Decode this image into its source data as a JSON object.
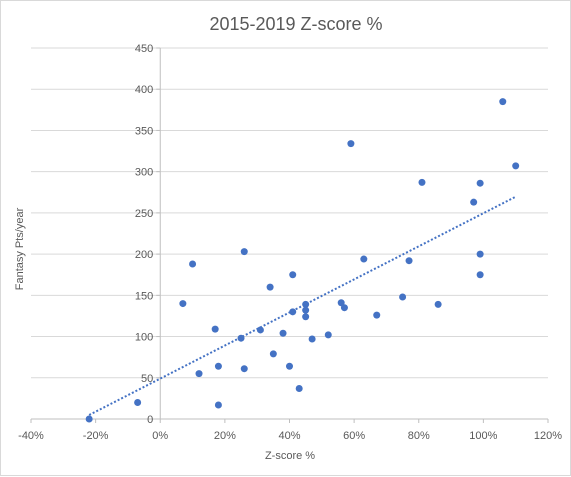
{
  "chart_data": {
    "type": "scatter",
    "title": "2015-2019 Z-score %",
    "xlabel": "Z-score %",
    "ylabel": "Fantasy Pts/year",
    "xlim": [
      -0.4,
      1.2
    ],
    "ylim": [
      0,
      450
    ],
    "x_tick_values": [
      -0.4,
      -0.2,
      0,
      0.2,
      0.4,
      0.6,
      0.8,
      1.0,
      1.2
    ],
    "x_tick_labels": [
      "-40%",
      "-20%",
      "0%",
      "20%",
      "40%",
      "60%",
      "80%",
      "100%",
      "120%"
    ],
    "y_tick_values": [
      0,
      50,
      100,
      150,
      200,
      250,
      300,
      350,
      400,
      450
    ],
    "y_tick_labels": [
      "0",
      "50",
      "100",
      "150",
      "200",
      "250",
      "300",
      "350",
      "400",
      "450"
    ],
    "grid": "horizontal",
    "marker_color": "#4472c4",
    "trendline": {
      "kind": "linear",
      "style": "dotted",
      "color": "#4472c4",
      "x_range": [
        -0.22,
        1.1
      ]
    },
    "series": [
      {
        "points": [
          {
            "x": -0.22,
            "y": 0
          },
          {
            "x": -0.07,
            "y": 20
          },
          {
            "x": 0.07,
            "y": 140
          },
          {
            "x": 0.1,
            "y": 188
          },
          {
            "x": 0.12,
            "y": 55
          },
          {
            "x": 0.17,
            "y": 109
          },
          {
            "x": 0.18,
            "y": 64
          },
          {
            "x": 0.18,
            "y": 17
          },
          {
            "x": 0.25,
            "y": 98
          },
          {
            "x": 0.26,
            "y": 203
          },
          {
            "x": 0.26,
            "y": 61
          },
          {
            "x": 0.31,
            "y": 108
          },
          {
            "x": 0.34,
            "y": 160
          },
          {
            "x": 0.35,
            "y": 79
          },
          {
            "x": 0.38,
            "y": 104
          },
          {
            "x": 0.4,
            "y": 64
          },
          {
            "x": 0.41,
            "y": 175
          },
          {
            "x": 0.41,
            "y": 130
          },
          {
            "x": 0.43,
            "y": 37
          },
          {
            "x": 0.45,
            "y": 139
          },
          {
            "x": 0.45,
            "y": 132
          },
          {
            "x": 0.45,
            "y": 124
          },
          {
            "x": 0.47,
            "y": 97
          },
          {
            "x": 0.52,
            "y": 102
          },
          {
            "x": 0.56,
            "y": 141
          },
          {
            "x": 0.57,
            "y": 135
          },
          {
            "x": 0.59,
            "y": 334
          },
          {
            "x": 0.63,
            "y": 194
          },
          {
            "x": 0.67,
            "y": 126
          },
          {
            "x": 0.75,
            "y": 148
          },
          {
            "x": 0.77,
            "y": 192
          },
          {
            "x": 0.81,
            "y": 287
          },
          {
            "x": 0.86,
            "y": 139
          },
          {
            "x": 0.97,
            "y": 263
          },
          {
            "x": 0.99,
            "y": 286
          },
          {
            "x": 0.99,
            "y": 200
          },
          {
            "x": 0.99,
            "y": 175
          },
          {
            "x": 1.06,
            "y": 385
          },
          {
            "x": 1.1,
            "y": 307
          }
        ]
      }
    ]
  }
}
